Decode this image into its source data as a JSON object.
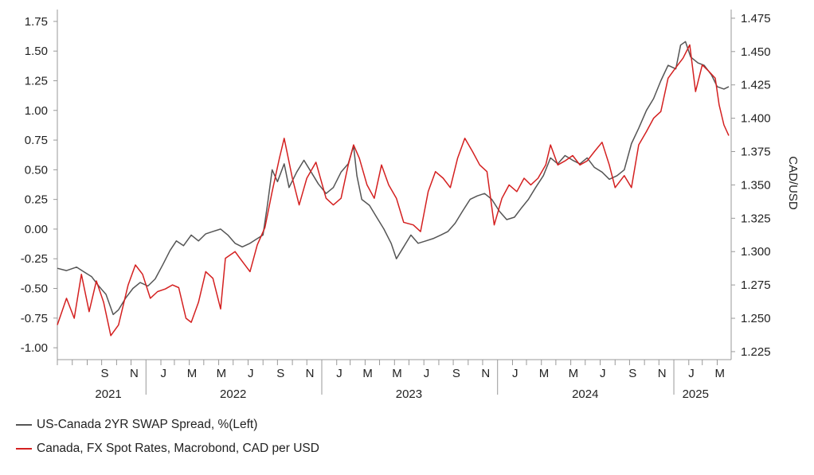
{
  "chart_data": {
    "type": "line",
    "title": "",
    "x_range": [
      "2021-07-01",
      "2025-04-30"
    ],
    "y_left": {
      "ticks": [
        "1.75",
        "1.50",
        "1.25",
        "1.00",
        "0.75",
        "0.50",
        "0.25",
        "0.00",
        "-0.25",
        "-0.50",
        "-0.75",
        "-1.00"
      ],
      "range": [
        -1.1,
        1.85
      ]
    },
    "y_right": {
      "label": "CAD/USD",
      "ticks": [
        "1.475",
        "1.450",
        "1.425",
        "1.400",
        "1.375",
        "1.350",
        "1.325",
        "1.300",
        "1.275",
        "1.250",
        "1.225"
      ],
      "range": [
        1.219,
        1.4815
      ]
    },
    "x_month_ticks": [
      {
        "label": "S",
        "date": "2021-09-01"
      },
      {
        "label": "N",
        "date": "2021-11-01"
      },
      {
        "label": "J",
        "date": "2022-01-01"
      },
      {
        "label": "M",
        "date": "2022-03-01"
      },
      {
        "label": "M",
        "date": "2022-05-01"
      },
      {
        "label": "J",
        "date": "2022-07-01"
      },
      {
        "label": "S",
        "date": "2022-09-01"
      },
      {
        "label": "N",
        "date": "2022-11-01"
      },
      {
        "label": "J",
        "date": "2023-01-01"
      },
      {
        "label": "M",
        "date": "2023-03-01"
      },
      {
        "label": "M",
        "date": "2023-05-01"
      },
      {
        "label": "J",
        "date": "2023-07-01"
      },
      {
        "label": "S",
        "date": "2023-09-01"
      },
      {
        "label": "N",
        "date": "2023-11-01"
      },
      {
        "label": "J",
        "date": "2024-01-01"
      },
      {
        "label": "M",
        "date": "2024-03-01"
      },
      {
        "label": "M",
        "date": "2024-05-01"
      },
      {
        "label": "J",
        "date": "2024-07-01"
      },
      {
        "label": "S",
        "date": "2024-09-01"
      },
      {
        "label": "N",
        "date": "2024-11-01"
      },
      {
        "label": "J",
        "date": "2025-01-01"
      },
      {
        "label": "M",
        "date": "2025-03-01"
      }
    ],
    "x_year_labels": [
      {
        "label": "2021",
        "date": "2021-10-15"
      },
      {
        "label": "2022",
        "date": "2022-07-01"
      },
      {
        "label": "2023",
        "date": "2023-07-01"
      },
      {
        "label": "2024",
        "date": "2024-07-01"
      },
      {
        "label": "2025",
        "date": "2025-02-15"
      }
    ],
    "series": [
      {
        "name": "US-Canada 2YR SWAP Spread, %(Left)",
        "axis": "left",
        "color": "#555555",
        "points": [
          [
            "2021-07-01",
            -0.33
          ],
          [
            "2021-07-20",
            -0.35
          ],
          [
            "2021-08-10",
            -0.32
          ],
          [
            "2021-08-25",
            -0.36
          ],
          [
            "2021-09-10",
            -0.4
          ],
          [
            "2021-09-25",
            -0.48
          ],
          [
            "2021-10-10",
            -0.55
          ],
          [
            "2021-10-25",
            -0.72
          ],
          [
            "2021-11-05",
            -0.68
          ],
          [
            "2021-11-20",
            -0.58
          ],
          [
            "2021-12-05",
            -0.5
          ],
          [
            "2021-12-20",
            -0.45
          ],
          [
            "2022-01-05",
            -0.48
          ],
          [
            "2022-01-20",
            -0.42
          ],
          [
            "2022-02-05",
            -0.3
          ],
          [
            "2022-02-20",
            -0.18
          ],
          [
            "2022-03-05",
            -0.1
          ],
          [
            "2022-03-20",
            -0.14
          ],
          [
            "2022-04-05",
            -0.05
          ],
          [
            "2022-04-20",
            -0.1
          ],
          [
            "2022-05-05",
            -0.04
          ],
          [
            "2022-05-20",
            -0.02
          ],
          [
            "2022-06-05",
            0.0
          ],
          [
            "2022-06-20",
            -0.05
          ],
          [
            "2022-07-05",
            -0.12
          ],
          [
            "2022-07-20",
            -0.15
          ],
          [
            "2022-08-05",
            -0.12
          ],
          [
            "2022-08-20",
            -0.08
          ],
          [
            "2022-09-01",
            -0.05
          ],
          [
            "2022-09-10",
            0.2
          ],
          [
            "2022-09-20",
            0.5
          ],
          [
            "2022-10-01",
            0.4
          ],
          [
            "2022-10-15",
            0.55
          ],
          [
            "2022-10-25",
            0.35
          ],
          [
            "2022-11-10",
            0.48
          ],
          [
            "2022-11-25",
            0.58
          ],
          [
            "2022-12-10",
            0.48
          ],
          [
            "2022-12-25",
            0.38
          ],
          [
            "2023-01-10",
            0.3
          ],
          [
            "2023-01-25",
            0.35
          ],
          [
            "2023-02-10",
            0.48
          ],
          [
            "2023-02-25",
            0.55
          ],
          [
            "2023-03-08",
            0.7
          ],
          [
            "2023-03-15",
            0.45
          ],
          [
            "2023-03-25",
            0.25
          ],
          [
            "2023-04-10",
            0.2
          ],
          [
            "2023-04-25",
            0.1
          ],
          [
            "2023-05-10",
            0.0
          ],
          [
            "2023-05-25",
            -0.12
          ],
          [
            "2023-06-05",
            -0.25
          ],
          [
            "2023-06-20",
            -0.15
          ],
          [
            "2023-07-05",
            -0.05
          ],
          [
            "2023-07-20",
            -0.12
          ],
          [
            "2023-08-05",
            -0.1
          ],
          [
            "2023-08-20",
            -0.08
          ],
          [
            "2023-09-05",
            -0.05
          ],
          [
            "2023-09-20",
            -0.02
          ],
          [
            "2023-10-05",
            0.05
          ],
          [
            "2023-10-20",
            0.15
          ],
          [
            "2023-11-05",
            0.25
          ],
          [
            "2023-11-20",
            0.28
          ],
          [
            "2023-12-05",
            0.3
          ],
          [
            "2023-12-20",
            0.25
          ],
          [
            "2024-01-05",
            0.15
          ],
          [
            "2024-01-20",
            0.08
          ],
          [
            "2024-02-05",
            0.1
          ],
          [
            "2024-02-20",
            0.18
          ],
          [
            "2024-03-05",
            0.25
          ],
          [
            "2024-03-20",
            0.35
          ],
          [
            "2024-04-05",
            0.45
          ],
          [
            "2024-04-20",
            0.6
          ],
          [
            "2024-05-05",
            0.55
          ],
          [
            "2024-05-20",
            0.62
          ],
          [
            "2024-06-05",
            0.58
          ],
          [
            "2024-06-20",
            0.55
          ],
          [
            "2024-07-05",
            0.6
          ],
          [
            "2024-07-20",
            0.52
          ],
          [
            "2024-08-05",
            0.48
          ],
          [
            "2024-08-20",
            0.42
          ],
          [
            "2024-09-05",
            0.45
          ],
          [
            "2024-09-20",
            0.5
          ],
          [
            "2024-10-05",
            0.72
          ],
          [
            "2024-10-20",
            0.85
          ],
          [
            "2024-11-05",
            1.0
          ],
          [
            "2024-11-20",
            1.1
          ],
          [
            "2024-12-05",
            1.25
          ],
          [
            "2024-12-20",
            1.38
          ],
          [
            "2025-01-05",
            1.35
          ],
          [
            "2025-01-15",
            1.55
          ],
          [
            "2025-01-25",
            1.58
          ],
          [
            "2025-02-05",
            1.45
          ],
          [
            "2025-02-20",
            1.4
          ],
          [
            "2025-03-05",
            1.38
          ],
          [
            "2025-03-20",
            1.3
          ],
          [
            "2025-04-01",
            1.2
          ],
          [
            "2025-04-15",
            1.18
          ],
          [
            "2025-04-25",
            1.2
          ]
        ]
      },
      {
        "name": "Canada, FX Spot Rates, Macrobond, CAD per USD",
        "axis": "right",
        "color": "#d42020",
        "points": [
          [
            "2021-07-01",
            1.245
          ],
          [
            "2021-07-20",
            1.265
          ],
          [
            "2021-08-05",
            1.25
          ],
          [
            "2021-08-20",
            1.283
          ],
          [
            "2021-09-05",
            1.255
          ],
          [
            "2021-09-20",
            1.278
          ],
          [
            "2021-10-05",
            1.262
          ],
          [
            "2021-10-20",
            1.237
          ],
          [
            "2021-11-05",
            1.245
          ],
          [
            "2021-11-25",
            1.275
          ],
          [
            "2021-12-10",
            1.29
          ],
          [
            "2021-12-25",
            1.283
          ],
          [
            "2022-01-10",
            1.265
          ],
          [
            "2022-01-25",
            1.27
          ],
          [
            "2022-02-10",
            1.272
          ],
          [
            "2022-02-25",
            1.275
          ],
          [
            "2022-03-10",
            1.273
          ],
          [
            "2022-03-25",
            1.25
          ],
          [
            "2022-04-05",
            1.247
          ],
          [
            "2022-04-20",
            1.262
          ],
          [
            "2022-05-05",
            1.285
          ],
          [
            "2022-05-20",
            1.28
          ],
          [
            "2022-06-05",
            1.257
          ],
          [
            "2022-06-15",
            1.295
          ],
          [
            "2022-07-05",
            1.3
          ],
          [
            "2022-07-15",
            1.295
          ],
          [
            "2022-08-05",
            1.285
          ],
          [
            "2022-08-20",
            1.305
          ],
          [
            "2022-09-05",
            1.318
          ],
          [
            "2022-09-20",
            1.345
          ],
          [
            "2022-10-05",
            1.37
          ],
          [
            "2022-10-15",
            1.385
          ],
          [
            "2022-11-01",
            1.355
          ],
          [
            "2022-11-15",
            1.335
          ],
          [
            "2022-12-01",
            1.355
          ],
          [
            "2022-12-20",
            1.367
          ],
          [
            "2023-01-10",
            1.34
          ],
          [
            "2023-01-25",
            1.335
          ],
          [
            "2023-02-10",
            1.34
          ],
          [
            "2023-02-25",
            1.365
          ],
          [
            "2023-03-08",
            1.38
          ],
          [
            "2023-03-20",
            1.37
          ],
          [
            "2023-04-05",
            1.35
          ],
          [
            "2023-04-20",
            1.34
          ],
          [
            "2023-05-05",
            1.365
          ],
          [
            "2023-05-20",
            1.35
          ],
          [
            "2023-06-05",
            1.34
          ],
          [
            "2023-06-20",
            1.322
          ],
          [
            "2023-07-10",
            1.32
          ],
          [
            "2023-07-25",
            1.315
          ],
          [
            "2023-08-10",
            1.345
          ],
          [
            "2023-08-25",
            1.36
          ],
          [
            "2023-09-10",
            1.355
          ],
          [
            "2023-09-25",
            1.348
          ],
          [
            "2023-10-10",
            1.37
          ],
          [
            "2023-10-25",
            1.385
          ],
          [
            "2023-11-10",
            1.375
          ],
          [
            "2023-11-25",
            1.365
          ],
          [
            "2023-12-10",
            1.36
          ],
          [
            "2023-12-25",
            1.32
          ],
          [
            "2024-01-10",
            1.34
          ],
          [
            "2024-01-25",
            1.35
          ],
          [
            "2024-02-10",
            1.345
          ],
          [
            "2024-02-25",
            1.355
          ],
          [
            "2024-03-10",
            1.35
          ],
          [
            "2024-03-25",
            1.355
          ],
          [
            "2024-04-10",
            1.365
          ],
          [
            "2024-04-20",
            1.38
          ],
          [
            "2024-05-05",
            1.365
          ],
          [
            "2024-05-20",
            1.368
          ],
          [
            "2024-06-05",
            1.372
          ],
          [
            "2024-06-20",
            1.365
          ],
          [
            "2024-07-05",
            1.368
          ],
          [
            "2024-07-20",
            1.375
          ],
          [
            "2024-08-05",
            1.382
          ],
          [
            "2024-08-20",
            1.365
          ],
          [
            "2024-09-01",
            1.348
          ],
          [
            "2024-09-20",
            1.357
          ],
          [
            "2024-10-05",
            1.348
          ],
          [
            "2024-10-20",
            1.38
          ],
          [
            "2024-11-05",
            1.39
          ],
          [
            "2024-11-20",
            1.4
          ],
          [
            "2024-12-05",
            1.405
          ],
          [
            "2024-12-20",
            1.43
          ],
          [
            "2025-01-05",
            1.438
          ],
          [
            "2025-01-20",
            1.445
          ],
          [
            "2025-02-03",
            1.455
          ],
          [
            "2025-02-15",
            1.42
          ],
          [
            "2025-03-01",
            1.44
          ],
          [
            "2025-03-15",
            1.435
          ],
          [
            "2025-03-28",
            1.43
          ],
          [
            "2025-04-05",
            1.41
          ],
          [
            "2025-04-15",
            1.395
          ],
          [
            "2025-04-25",
            1.387
          ]
        ]
      }
    ]
  },
  "legend": {
    "items": [
      {
        "label": "US-Canada 2YR SWAP Spread, %(Left)",
        "color": "#555555"
      },
      {
        "label": "Canada, FX Spot Rates, Macrobond, CAD per USD",
        "color": "#d42020"
      }
    ]
  }
}
